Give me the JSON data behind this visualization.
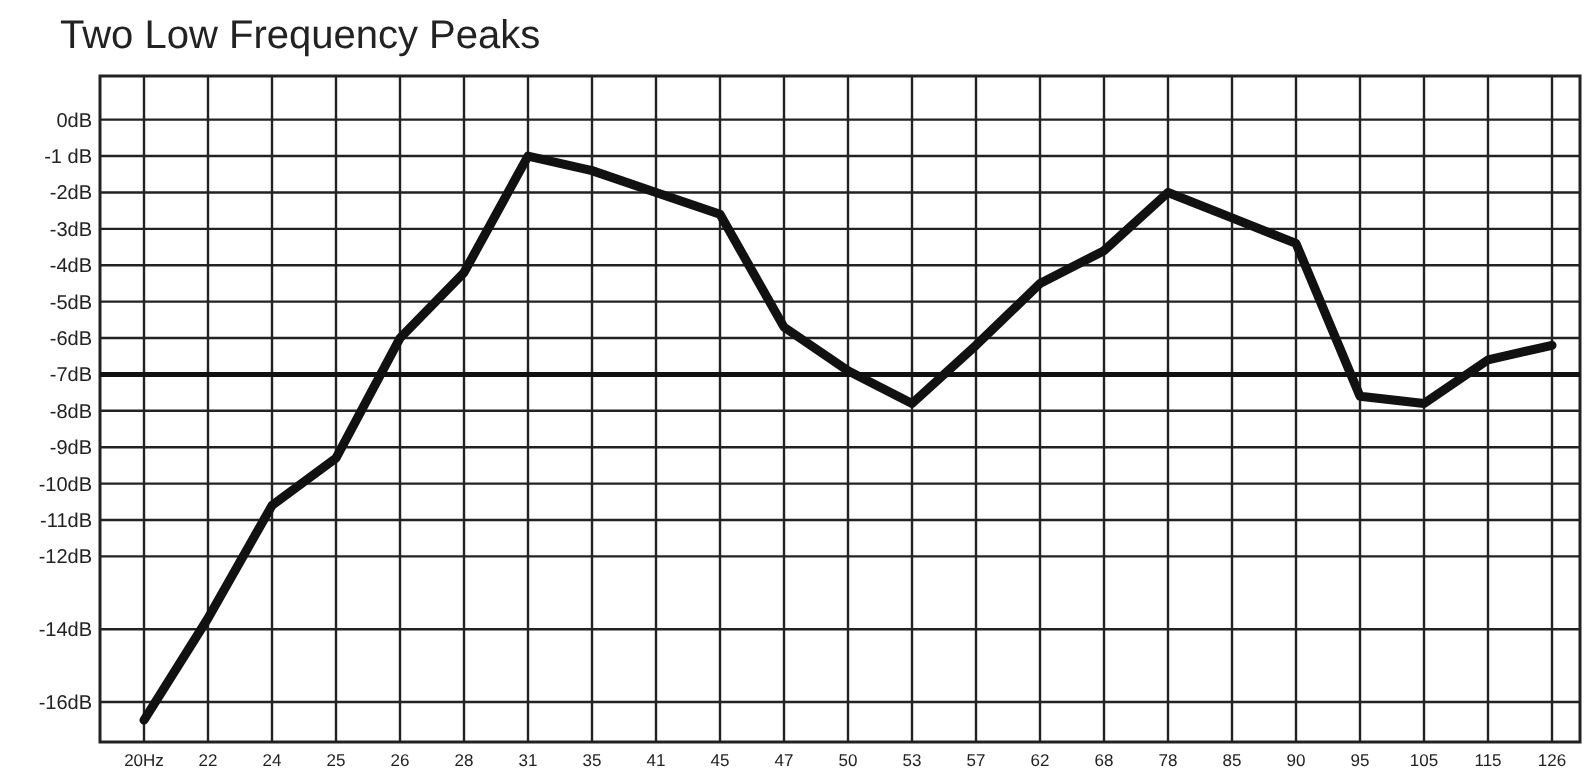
{
  "chart_data": {
    "type": "line",
    "title": "Two Low Frequency Peaks",
    "categories": [
      "20Hz",
      "22",
      "24",
      "25",
      "26",
      "28",
      "31",
      "35",
      "41",
      "45",
      "47",
      "50",
      "53",
      "57",
      "62",
      "68",
      "78",
      "85",
      "90",
      "95",
      "105",
      "115",
      "126"
    ],
    "series": [
      {
        "color": "#111111",
        "values": [
          -16.5,
          -13.7,
          -10.6,
          -9.3,
          -6,
          -4.2,
          -1,
          -1.4,
          -2,
          -2.6,
          -5.7,
          -6.9,
          -7.8,
          -6.2,
          -4.5,
          -3.6,
          -2,
          -2.7,
          -3.4,
          -7.6,
          -7.8,
          -6.6,
          -6.2
        ]
      }
    ],
    "ylim": [
      -17.1,
      1.2
    ],
    "yticks": [
      {
        "value": 0,
        "label": "0dB"
      },
      {
        "value": -1,
        "label": "-1 dB"
      },
      {
        "value": -2,
        "label": "-2dB"
      },
      {
        "value": -3,
        "label": "-3dB"
      },
      {
        "value": -4,
        "label": "-4dB"
      },
      {
        "value": -5,
        "label": "-5dB"
      },
      {
        "value": -6,
        "label": "-6dB"
      },
      {
        "value": -7,
        "label": "-7dB"
      },
      {
        "value": -8,
        "label": "-8dB"
      },
      {
        "value": -9,
        "label": "-9dB"
      },
      {
        "value": -10,
        "label": "-10dB"
      },
      {
        "value": -11,
        "label": "-11dB"
      },
      {
        "value": -12,
        "label": "-12dB"
      },
      {
        "value": -14,
        "label": "-14dB"
      },
      {
        "value": -16,
        "label": "-16dB"
      }
    ],
    "ref_lines": [
      {
        "axis": "y",
        "value": -7,
        "color": "#111111"
      }
    ],
    "grid": true,
    "line_style": "solid",
    "marker": "none"
  }
}
